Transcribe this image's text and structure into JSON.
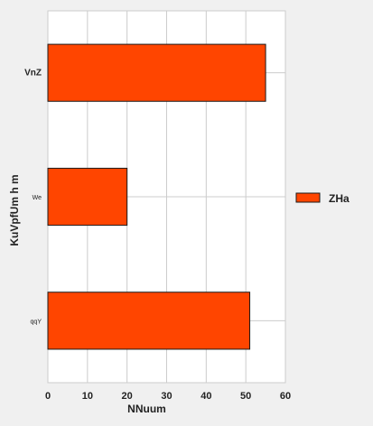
{
  "chart_data": {
    "type": "bar",
    "orientation": "horizontal",
    "categories": [
      "VnZ",
      "We",
      "qqY"
    ],
    "series": [
      {
        "name": "ZHa",
        "values": [
          55,
          20,
          51
        ]
      }
    ],
    "xlabel": "NNuum",
    "ylabel": "KuVpfUm h m",
    "xlim": [
      0,
      60
    ],
    "xticks": [
      "0",
      "10",
      "20",
      "30",
      "40",
      "50",
      "60"
    ],
    "grid": true,
    "legend_position": "right",
    "colors": {
      "bar": "#ff4500",
      "bar_edge": "#1a1a1a",
      "plot_bg": "#ffffff",
      "grid": "#cccccc",
      "page_bg": "#f0f0f0"
    }
  }
}
